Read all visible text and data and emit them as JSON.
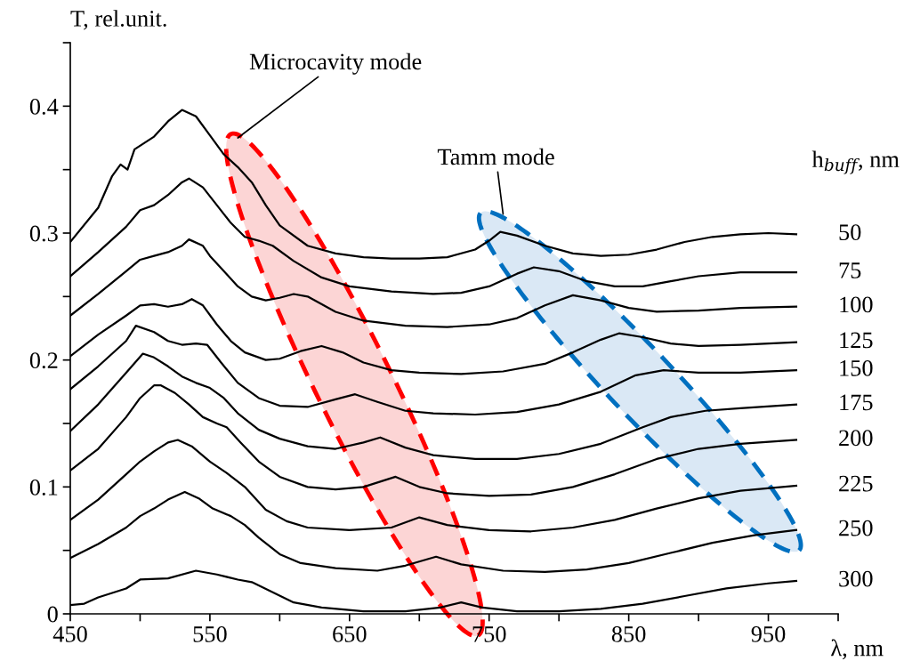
{
  "chart_data": {
    "type": "line",
    "xlabel": "λ, nm",
    "ylabel": "T, rel.unit.",
    "legend_title": "h$_{buff}$, nm",
    "annotations": [
      "Microcavity mode",
      "Tamm mode"
    ],
    "xlim": [
      450,
      1000
    ],
    "ylim": [
      0,
      0.45
    ],
    "xticks": [
      450,
      {
        "value": 500,
        "label": null
      },
      550,
      {
        "value": 600,
        "label": null
      },
      650,
      {
        "value": 700,
        "label": null
      },
      750,
      {
        "value": 800,
        "label": null
      },
      850,
      {
        "value": 900,
        "label": null
      },
      950,
      {
        "value": 1000,
        "label": null
      }
    ],
    "yticks": [
      0,
      {
        "value": 0.05,
        "label": null
      },
      0.1,
      {
        "value": 0.15,
        "label": null
      },
      0.2,
      {
        "value": 0.25,
        "label": null
      },
      0.3,
      {
        "value": 0.35,
        "label": null
      },
      0.4,
      {
        "value": 0.45,
        "label": null
      }
    ],
    "grid": false,
    "legend": false,
    "marker": "none",
    "line_style": "solid",
    "series": [
      {
        "name": "50",
        "color": "#000000",
        "x": [
          450,
          470,
          480,
          486,
          491,
          496,
          510,
          520,
          530,
          540,
          550,
          560,
          570,
          580,
          590,
          600,
          620,
          640,
          660,
          680,
          700,
          720,
          740,
          750,
          758,
          770,
          790,
          810,
          830,
          850,
          870,
          890,
          910,
          930,
          950,
          970
        ],
        "values": [
          0.293,
          0.32,
          0.345,
          0.354,
          0.35,
          0.366,
          0.376,
          0.388,
          0.397,
          0.392,
          0.377,
          0.362,
          0.352,
          0.34,
          0.322,
          0.306,
          0.29,
          0.284,
          0.281,
          0.28,
          0.28,
          0.281,
          0.287,
          0.294,
          0.301,
          0.298,
          0.29,
          0.284,
          0.282,
          0.283,
          0.287,
          0.293,
          0.297,
          0.299,
          0.3,
          0.299
        ]
      },
      {
        "name": "75",
        "color": "#000000",
        "x": [
          450,
          470,
          490,
          500,
          510,
          520,
          530,
          535,
          545,
          555,
          565,
          575,
          585,
          595,
          610,
          630,
          650,
          680,
          710,
          730,
          750,
          770,
          782,
          800,
          820,
          840,
          860,
          880,
          900,
          930,
          970
        ],
        "values": [
          0.266,
          0.285,
          0.305,
          0.318,
          0.322,
          0.33,
          0.34,
          0.343,
          0.336,
          0.322,
          0.308,
          0.297,
          0.294,
          0.29,
          0.278,
          0.265,
          0.258,
          0.254,
          0.252,
          0.253,
          0.258,
          0.268,
          0.273,
          0.27,
          0.262,
          0.258,
          0.258,
          0.262,
          0.266,
          0.269,
          0.269
        ]
      },
      {
        "name": "100",
        "color": "#000000",
        "x": [
          450,
          470,
          490,
          500,
          510,
          520,
          530,
          535,
          545,
          550,
          560,
          570,
          580,
          590,
          600,
          610,
          620,
          640,
          660,
          690,
          720,
          750,
          770,
          790,
          810,
          830,
          850,
          870,
          900,
          930,
          970
        ],
        "values": [
          0.235,
          0.252,
          0.27,
          0.279,
          0.282,
          0.285,
          0.29,
          0.295,
          0.29,
          0.282,
          0.27,
          0.258,
          0.25,
          0.247,
          0.249,
          0.252,
          0.25,
          0.238,
          0.231,
          0.227,
          0.226,
          0.228,
          0.233,
          0.243,
          0.251,
          0.247,
          0.241,
          0.238,
          0.239,
          0.241,
          0.242
        ]
      },
      {
        "name": "125",
        "color": "#000000",
        "x": [
          450,
          470,
          490,
          500,
          510,
          520,
          530,
          537,
          545,
          555,
          565,
          575,
          590,
          600,
          615,
          630,
          645,
          660,
          680,
          700,
          730,
          760,
          790,
          810,
          830,
          843,
          860,
          880,
          900,
          930,
          970
        ],
        "values": [
          0.203,
          0.22,
          0.235,
          0.243,
          0.244,
          0.242,
          0.244,
          0.248,
          0.243,
          0.228,
          0.215,
          0.206,
          0.2,
          0.201,
          0.207,
          0.211,
          0.206,
          0.198,
          0.192,
          0.19,
          0.189,
          0.191,
          0.197,
          0.206,
          0.216,
          0.221,
          0.218,
          0.213,
          0.211,
          0.212,
          0.214
        ]
      },
      {
        "name": "150",
        "color": "#000000",
        "x": [
          450,
          470,
          490,
          497,
          510,
          520,
          530,
          540,
          548,
          558,
          570,
          585,
          600,
          620,
          640,
          654,
          670,
          690,
          710,
          740,
          770,
          800,
          830,
          855,
          875,
          900,
          930,
          970
        ],
        "values": [
          0.177,
          0.195,
          0.215,
          0.227,
          0.222,
          0.215,
          0.212,
          0.213,
          0.212,
          0.198,
          0.182,
          0.17,
          0.164,
          0.163,
          0.169,
          0.173,
          0.167,
          0.16,
          0.158,
          0.157,
          0.159,
          0.165,
          0.175,
          0.188,
          0.192,
          0.19,
          0.19,
          0.192
        ]
      },
      {
        "name": "175",
        "color": "#000000",
        "x": [
          450,
          470,
          490,
          502,
          510,
          520,
          530,
          540,
          550,
          560,
          570,
          585,
          600,
          620,
          640,
          660,
          672,
          690,
          710,
          740,
          770,
          800,
          830,
          860,
          880,
          905,
          930,
          970
        ],
        "values": [
          0.144,
          0.165,
          0.19,
          0.205,
          0.202,
          0.195,
          0.187,
          0.182,
          0.178,
          0.17,
          0.158,
          0.145,
          0.138,
          0.132,
          0.13,
          0.135,
          0.139,
          0.131,
          0.125,
          0.122,
          0.122,
          0.126,
          0.134,
          0.147,
          0.155,
          0.16,
          0.162,
          0.165
        ]
      },
      {
        "name": "200",
        "color": "#000000",
        "x": [
          450,
          470,
          490,
          500,
          510,
          515,
          525,
          535,
          545,
          555,
          562,
          572,
          585,
          600,
          620,
          640,
          660,
          683,
          700,
          720,
          750,
          780,
          810,
          840,
          870,
          900,
          930,
          970
        ],
        "values": [
          0.113,
          0.13,
          0.155,
          0.17,
          0.18,
          0.18,
          0.174,
          0.165,
          0.155,
          0.15,
          0.147,
          0.135,
          0.12,
          0.108,
          0.1,
          0.098,
          0.1,
          0.108,
          0.1,
          0.095,
          0.093,
          0.094,
          0.1,
          0.11,
          0.122,
          0.13,
          0.134,
          0.137
        ]
      },
      {
        "name": "225",
        "color": "#000000",
        "x": [
          450,
          470,
          490,
          500,
          510,
          520,
          527,
          537,
          550,
          562,
          575,
          590,
          605,
          620,
          650,
          680,
          700,
          720,
          750,
          780,
          810,
          840,
          870,
          900,
          930,
          970
        ],
        "values": [
          0.074,
          0.09,
          0.11,
          0.12,
          0.128,
          0.135,
          0.137,
          0.132,
          0.12,
          0.111,
          0.1,
          0.082,
          0.073,
          0.068,
          0.066,
          0.068,
          0.076,
          0.07,
          0.066,
          0.065,
          0.068,
          0.074,
          0.083,
          0.091,
          0.097,
          0.101
        ]
      },
      {
        "name": "250",
        "color": "#000000",
        "x": [
          450,
          470,
          490,
          500,
          510,
          520,
          532,
          542,
          552,
          565,
          575,
          585,
          600,
          615,
          640,
          670,
          690,
          712,
          730,
          760,
          790,
          820,
          850,
          880,
          910,
          940,
          970
        ],
        "values": [
          0.044,
          0.055,
          0.068,
          0.077,
          0.083,
          0.09,
          0.096,
          0.091,
          0.083,
          0.077,
          0.07,
          0.06,
          0.047,
          0.04,
          0.036,
          0.034,
          0.038,
          0.045,
          0.039,
          0.034,
          0.033,
          0.035,
          0.04,
          0.048,
          0.056,
          0.062,
          0.066
        ]
      },
      {
        "name": "300",
        "color": "#000000",
        "x": [
          450,
          460,
          470,
          490,
          500,
          520,
          540,
          555,
          570,
          580,
          595,
          610,
          630,
          660,
          690,
          715,
          730,
          745,
          770,
          800,
          830,
          860,
          890,
          920,
          950,
          970
        ],
        "values": [
          0.007,
          0.008,
          0.013,
          0.02,
          0.027,
          0.028,
          0.034,
          0.031,
          0.027,
          0.025,
          0.017,
          0.009,
          0.005,
          0.002,
          0.002,
          0.005,
          0.009,
          0.005,
          0.002,
          0.002,
          0.004,
          0.008,
          0.014,
          0.02,
          0.024,
          0.026
        ]
      }
    ]
  }
}
